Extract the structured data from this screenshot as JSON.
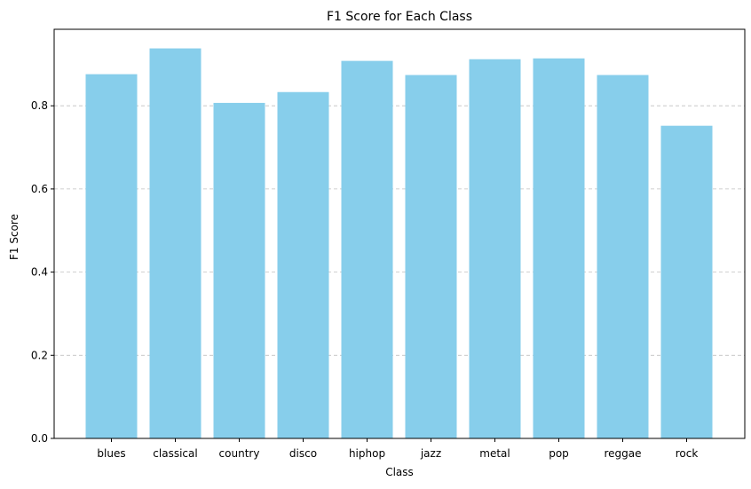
{
  "chart_data": {
    "type": "bar",
    "title": "F1 Score for Each Class",
    "xlabel": "Class",
    "ylabel": "F1 Score",
    "categories": [
      "blues",
      "classical",
      "country",
      "disco",
      "hiphop",
      "jazz",
      "metal",
      "pop",
      "reggae",
      "rock"
    ],
    "values": [
      0.876,
      0.938,
      0.807,
      0.833,
      0.908,
      0.874,
      0.912,
      0.914,
      0.874,
      0.752
    ],
    "ylim": [
      0,
      0.984
    ],
    "yticks": [
      "0.0",
      "0.2",
      "0.4",
      "0.6",
      "0.8"
    ],
    "grid": "y-dashed",
    "bar_color": "#87ceeb",
    "grid_color": "#c0c0c0"
  }
}
